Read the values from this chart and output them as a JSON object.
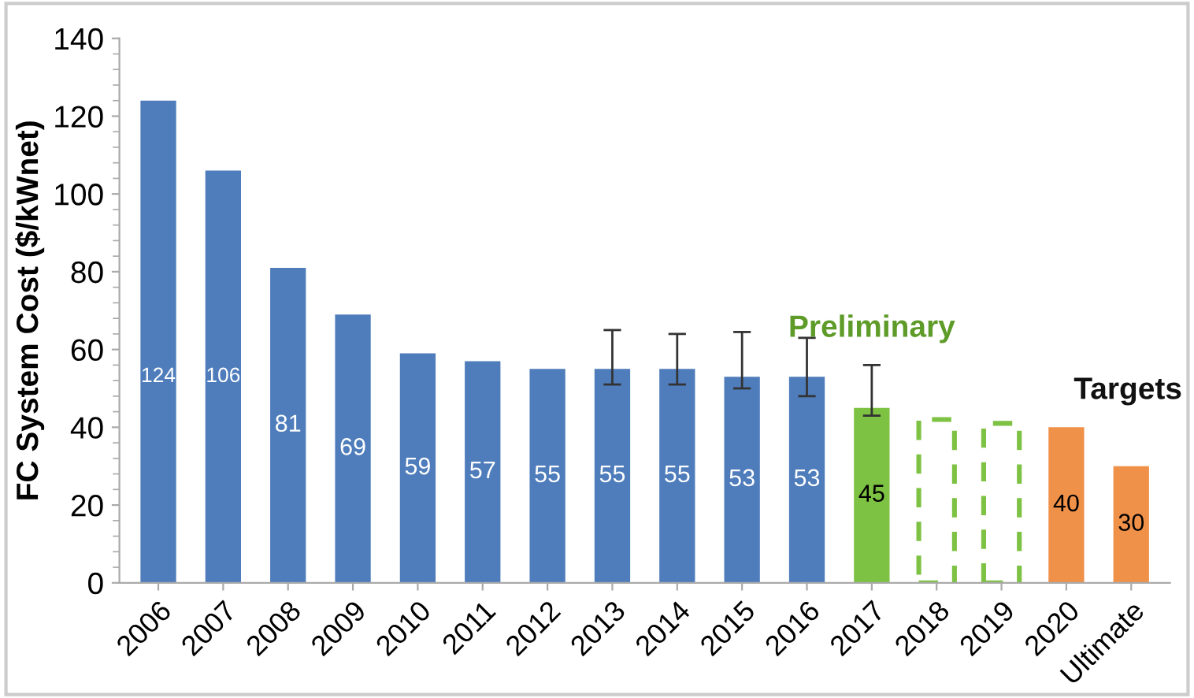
{
  "chart_data": {
    "type": "bar",
    "ylabel": "FC System Cost ($/kWnet)",
    "categories": [
      "2006",
      "2007",
      "2008",
      "2009",
      "2010",
      "2011",
      "2012",
      "2013",
      "2014",
      "2015",
      "2016",
      "2017",
      "2018",
      "2019",
      "2020",
      "Ultimate"
    ],
    "series": [
      {
        "color": "#4f7dbb",
        "values": [
          124,
          106,
          81,
          69,
          59,
          57,
          55,
          55,
          55,
          53,
          53,
          null,
          null,
          null,
          null,
          null
        ],
        "errors": [
          null,
          null,
          null,
          null,
          null,
          null,
          null,
          [
            51,
            65
          ],
          [
            51,
            64
          ],
          [
            50,
            64.5
          ],
          [
            48,
            63
          ],
          null,
          null,
          null,
          null,
          null
        ],
        "value_labels": [
          "124",
          "106",
          "81",
          "69",
          "59",
          "57",
          "55",
          "55",
          "55",
          "53",
          "53",
          null,
          null,
          null,
          null,
          null
        ]
      },
      {
        "color": "#7dc242",
        "values": [
          null,
          null,
          null,
          null,
          null,
          null,
          null,
          null,
          null,
          null,
          null,
          45,
          null,
          null,
          null,
          null
        ],
        "errors": [
          null,
          null,
          null,
          null,
          null,
          null,
          null,
          null,
          null,
          null,
          null,
          [
            43,
            56
          ],
          null,
          null,
          null,
          null
        ],
        "value_labels": [
          null,
          null,
          null,
          null,
          null,
          null,
          null,
          null,
          null,
          null,
          null,
          "45",
          null,
          null,
          null,
          null
        ]
      },
      {
        "color": "#7dc242",
        "line_style": "dashed",
        "values": [
          null,
          null,
          null,
          null,
          null,
          null,
          null,
          null,
          null,
          null,
          null,
          null,
          42,
          41,
          null,
          null
        ]
      },
      {
        "color": "#f0914a",
        "values": [
          null,
          null,
          null,
          null,
          null,
          null,
          null,
          null,
          null,
          null,
          null,
          null,
          null,
          null,
          40,
          30
        ],
        "value_labels": [
          null,
          null,
          null,
          null,
          null,
          null,
          null,
          null,
          null,
          null,
          null,
          null,
          null,
          null,
          "40",
          "30"
        ]
      }
    ],
    "ylim": [
      0,
      140
    ],
    "yticks": [
      0,
      20,
      40,
      60,
      80,
      100,
      120,
      140
    ],
    "grid": false,
    "legend": false,
    "annotations": [
      "Preliminary",
      "Targets"
    ]
  }
}
